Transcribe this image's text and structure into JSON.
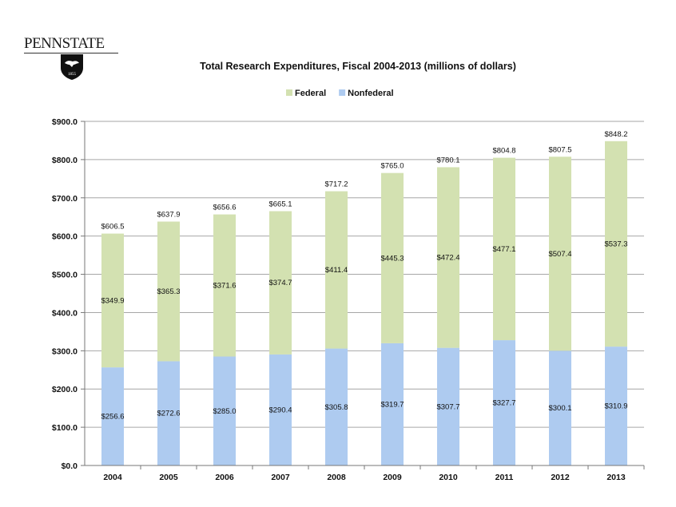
{
  "logo": {
    "text": "PENNSTATE",
    "year_text": "1855"
  },
  "chart_data": {
    "type": "bar",
    "stacked": true,
    "title": "Total Research Expenditures, Fiscal 2004-2013 (millions of dollars)",
    "categories": [
      "2004",
      "2005",
      "2006",
      "2007",
      "2008",
      "2009",
      "2010",
      "2011",
      "2012",
      "2013"
    ],
    "series": [
      {
        "name": "Nonfederal",
        "color": "#aecbf0",
        "values": [
          256.6,
          272.6,
          285.0,
          290.4,
          305.8,
          319.7,
          307.7,
          327.7,
          300.1,
          310.9
        ],
        "labels": [
          "$256.6",
          "$272.6",
          "$285.0",
          "$290.4",
          "$305.8",
          "$319.7",
          "$307.7",
          "$327.7",
          "$300.1",
          "$310.9"
        ]
      },
      {
        "name": "Federal",
        "color": "#d3e1b1",
        "values": [
          349.9,
          365.3,
          371.6,
          374.7,
          411.4,
          445.3,
          472.4,
          477.1,
          507.4,
          537.3
        ],
        "labels": [
          "$349.9",
          "$365.3",
          "$371.6",
          "$374.7",
          "$411.4",
          "$445.3",
          "$472.4",
          "$477.1",
          "$507.4",
          "$537.3"
        ]
      }
    ],
    "totals": [
      606.5,
      637.9,
      656.6,
      665.1,
      717.2,
      765.0,
      780.1,
      804.8,
      807.5,
      848.2
    ],
    "total_labels": [
      "$606.5",
      "$637.9",
      "$656.6",
      "$665.1",
      "$717.2",
      "$765.0",
      "$780.1",
      "$804.8",
      "$807.5",
      "$848.2"
    ],
    "legend_order": [
      "Federal",
      "Nonfederal"
    ],
    "legend_position": "top",
    "ylim": [
      0,
      900
    ],
    "yticks": [
      0,
      100,
      200,
      300,
      400,
      500,
      600,
      700,
      800,
      900
    ],
    "ytick_labels": [
      "$0.0",
      "$100.0",
      "$200.0",
      "$300.0",
      "$400.0",
      "$500.0",
      "$600.0",
      "$700.0",
      "$800.0",
      "$900.0"
    ],
    "grid": true,
    "xlabel": "",
    "ylabel": ""
  }
}
